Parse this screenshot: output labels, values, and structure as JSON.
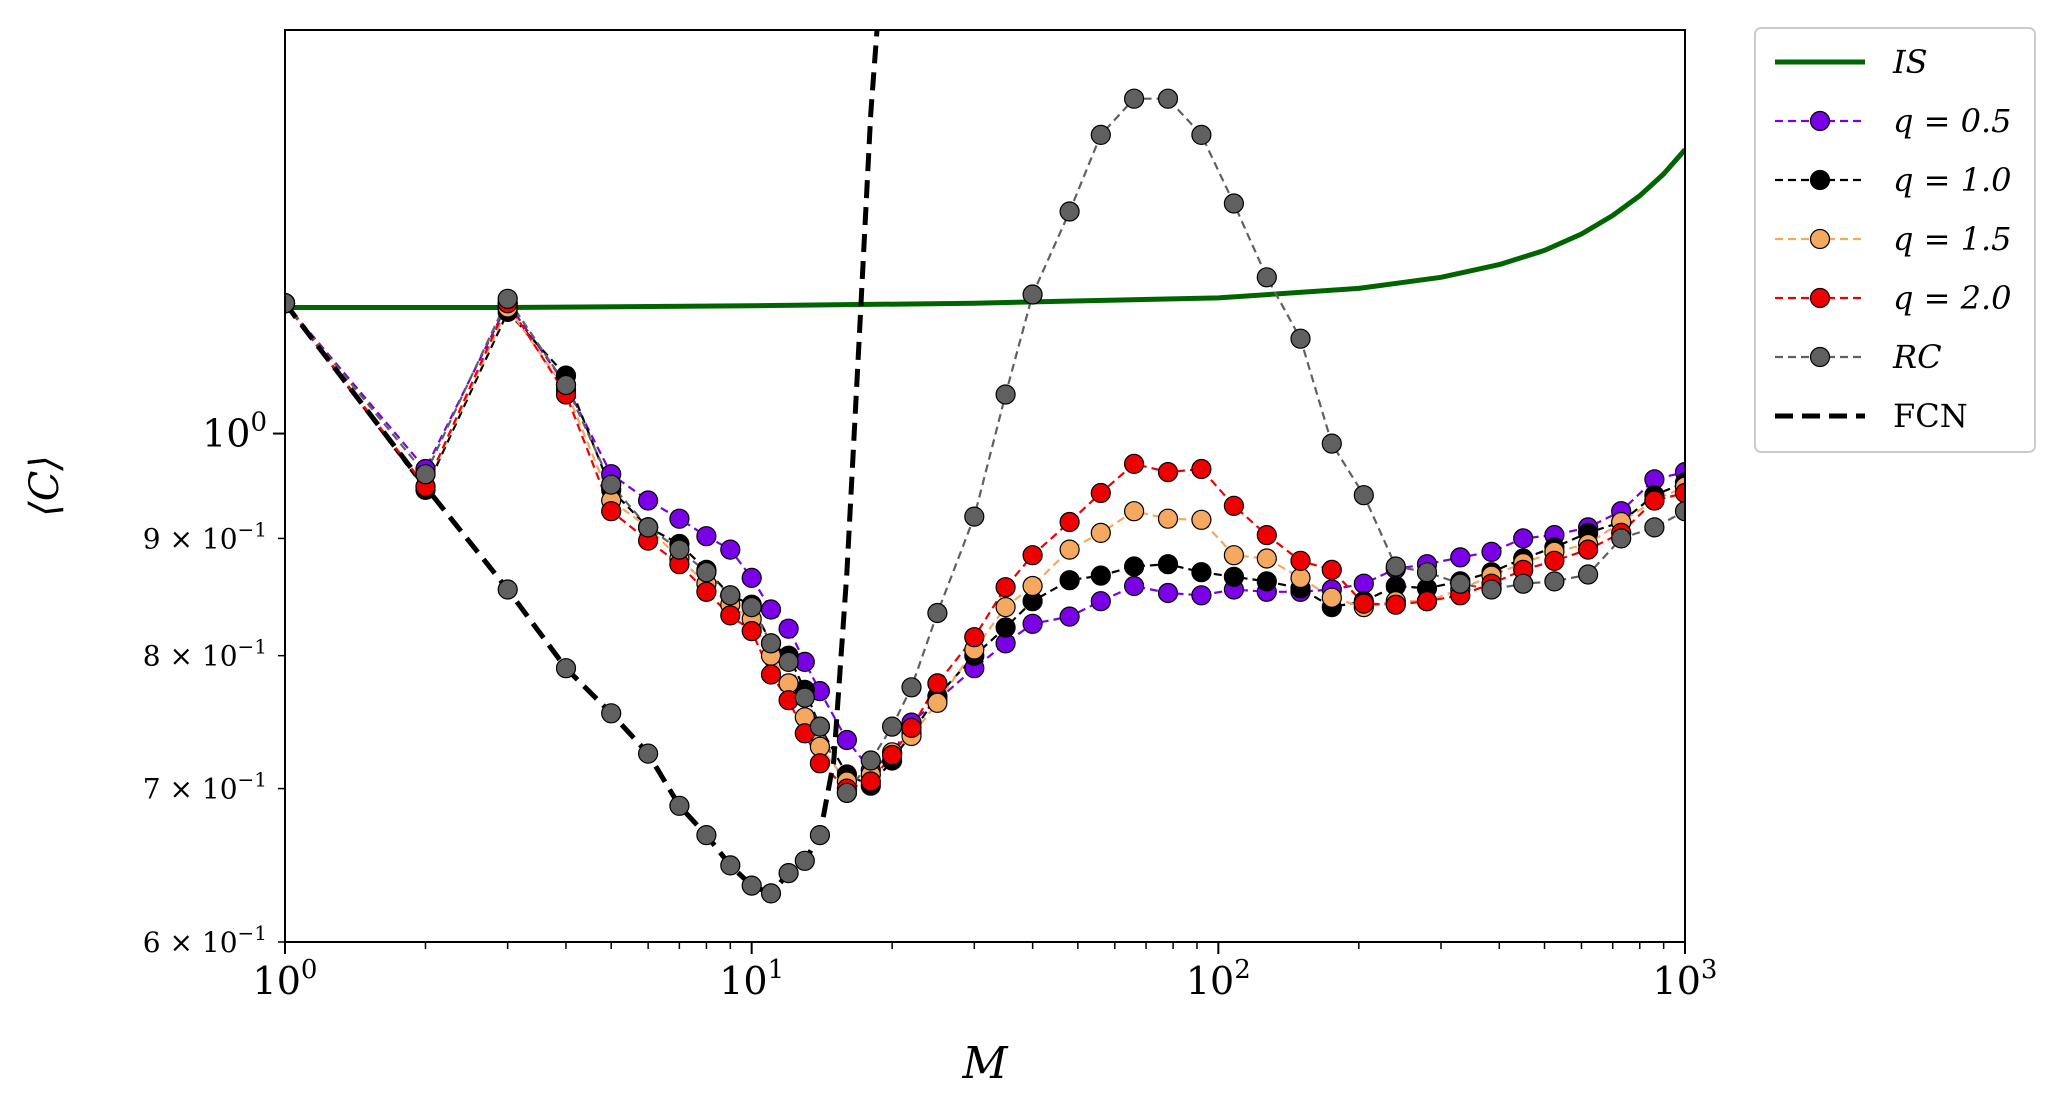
{
  "chart_data": {
    "type": "line",
    "xscale": "log",
    "yscale": "log",
    "xlim": [
      1,
      1000
    ],
    "ylim": [
      0.6,
      1.5
    ],
    "xlabel": "M",
    "ylabel": "⟨C⟩",
    "x_ticks": [
      {
        "value": 1,
        "base": "10",
        "exp": "0"
      },
      {
        "value": 10,
        "base": "10",
        "exp": "1"
      },
      {
        "value": 100,
        "base": "10",
        "exp": "2"
      },
      {
        "value": 1000,
        "base": "10",
        "exp": "3"
      }
    ],
    "y_ticks": [
      {
        "value": 1.0,
        "mant": "",
        "base": "10",
        "exp": "0"
      },
      {
        "value": 0.9,
        "mant": "9 × ",
        "base": "10",
        "exp": "−1"
      },
      {
        "value": 0.8,
        "mant": "8 × ",
        "base": "10",
        "exp": "−1"
      },
      {
        "value": 0.7,
        "mant": "7 × ",
        "base": "10",
        "exp": "−1"
      },
      {
        "value": 0.6,
        "mant": "6 × ",
        "base": "10",
        "exp": "−1"
      }
    ],
    "legend_position": "outside-top-right",
    "series": [
      {
        "name": "IS",
        "legend": "IS",
        "italic": true,
        "color": "#006400",
        "style": "solid-thick",
        "x": [
          1,
          3,
          10,
          30,
          100,
          200,
          300,
          400,
          500,
          600,
          700,
          800,
          900,
          1000
        ],
        "y": [
          1.135,
          1.135,
          1.137,
          1.14,
          1.146,
          1.157,
          1.17,
          1.185,
          1.202,
          1.222,
          1.245,
          1.27,
          1.298,
          1.33
        ]
      },
      {
        "name": "q = 0.5",
        "legend": "q = 0.5",
        "italic": true,
        "color": "#7a00e6",
        "style": "dashed-marker",
        "x": [
          1,
          2,
          3,
          4,
          5,
          6,
          7,
          8,
          9,
          10,
          11,
          12,
          13,
          14,
          16,
          18,
          20,
          22,
          25,
          30,
          35,
          40,
          48,
          56,
          66,
          78,
          92,
          108,
          127,
          150,
          175,
          205,
          240,
          280,
          330,
          385,
          450,
          525,
          620,
          730,
          860,
          1000
        ],
        "y": [
          1.14,
          0.965,
          1.14,
          1.05,
          0.96,
          0.935,
          0.918,
          0.902,
          0.89,
          0.865,
          0.838,
          0.822,
          0.795,
          0.772,
          0.735,
          0.713,
          0.725,
          0.748,
          0.765,
          0.79,
          0.81,
          0.826,
          0.832,
          0.845,
          0.858,
          0.852,
          0.85,
          0.855,
          0.853,
          0.853,
          0.855,
          0.86,
          0.873,
          0.877,
          0.883,
          0.888,
          0.9,
          0.903,
          0.91,
          0.925,
          0.955,
          0.962
        ]
      },
      {
        "name": "q = 1.0",
        "legend": "q = 1.0",
        "italic": true,
        "color": "#000000",
        "style": "dashed-marker",
        "x": [
          1,
          2,
          3,
          4,
          5,
          6,
          7,
          8,
          9,
          10,
          11,
          12,
          13,
          14,
          16,
          18,
          20,
          22,
          25,
          30,
          35,
          40,
          48,
          56,
          66,
          78,
          92,
          108,
          127,
          150,
          175,
          205,
          240,
          280,
          330,
          385,
          450,
          525,
          620,
          730,
          860,
          1000
        ],
        "y": [
          1.14,
          0.945,
          1.13,
          1.06,
          0.945,
          0.91,
          0.895,
          0.872,
          0.85,
          0.842,
          0.81,
          0.8,
          0.773,
          0.745,
          0.71,
          0.702,
          0.72,
          0.74,
          0.768,
          0.8,
          0.823,
          0.845,
          0.863,
          0.867,
          0.875,
          0.877,
          0.87,
          0.866,
          0.862,
          0.856,
          0.84,
          0.845,
          0.858,
          0.856,
          0.862,
          0.87,
          0.882,
          0.892,
          0.905,
          0.915,
          0.94,
          0.952
        ]
      },
      {
        "name": "q = 1.5",
        "legend": "q = 1.5",
        "italic": true,
        "color": "#f5a860",
        "style": "dashed-marker",
        "x": [
          1,
          2,
          3,
          4,
          5,
          6,
          7,
          8,
          9,
          10,
          11,
          12,
          13,
          14,
          16,
          18,
          20,
          22,
          25,
          30,
          35,
          40,
          48,
          56,
          66,
          78,
          92,
          108,
          127,
          150,
          175,
          205,
          240,
          280,
          330,
          385,
          450,
          525,
          620,
          730,
          860,
          1000
        ],
        "y": [
          1.14,
          0.948,
          1.135,
          1.045,
          0.935,
          0.91,
          0.882,
          0.86,
          0.842,
          0.83,
          0.8,
          0.778,
          0.752,
          0.73,
          0.705,
          0.71,
          0.726,
          0.738,
          0.763,
          0.805,
          0.84,
          0.858,
          0.89,
          0.905,
          0.925,
          0.918,
          0.917,
          0.885,
          0.882,
          0.865,
          0.848,
          0.84,
          0.845,
          0.845,
          0.855,
          0.867,
          0.878,
          0.888,
          0.895,
          0.915,
          0.935,
          0.948
        ]
      },
      {
        "name": "q = 2.0",
        "legend": "q = 2.0",
        "italic": true,
        "color": "#ee0000",
        "style": "dashed-marker",
        "x": [
          1,
          2,
          3,
          4,
          5,
          6,
          7,
          8,
          9,
          10,
          11,
          12,
          13,
          14,
          16,
          18,
          20,
          22,
          25,
          30,
          35,
          40,
          48,
          56,
          66,
          78,
          92,
          108,
          127,
          150,
          175,
          205,
          240,
          280,
          330,
          385,
          450,
          525,
          620,
          730,
          860,
          1000
        ],
        "y": [
          1.14,
          0.948,
          1.14,
          1.04,
          0.925,
          0.898,
          0.877,
          0.853,
          0.833,
          0.82,
          0.785,
          0.765,
          0.74,
          0.718,
          0.7,
          0.705,
          0.724,
          0.744,
          0.778,
          0.815,
          0.857,
          0.885,
          0.915,
          0.942,
          0.97,
          0.962,
          0.965,
          0.93,
          0.903,
          0.88,
          0.872,
          0.843,
          0.842,
          0.845,
          0.85,
          0.86,
          0.872,
          0.88,
          0.89,
          0.905,
          0.935,
          0.942
        ]
      },
      {
        "name": "RC",
        "legend": "RC",
        "italic": true,
        "color": "#606060",
        "style": "dashed-marker",
        "x": [
          1,
          2,
          3,
          4,
          5,
          6,
          7,
          8,
          9,
          10,
          11,
          12,
          13,
          14,
          16,
          18,
          20,
          22,
          25,
          30,
          35,
          40,
          48,
          56,
          66,
          78,
          92,
          108,
          127,
          150,
          175,
          205,
          240,
          280,
          330,
          385,
          450,
          525,
          620,
          730,
          860,
          1000
        ],
        "y": [
          1.14,
          0.96,
          1.145,
          1.05,
          0.95,
          0.91,
          0.89,
          0.87,
          0.85,
          0.84,
          0.81,
          0.795,
          0.767,
          0.745,
          0.697,
          0.72,
          0.745,
          0.775,
          0.835,
          0.92,
          1.04,
          1.15,
          1.25,
          1.35,
          1.4,
          1.4,
          1.35,
          1.26,
          1.17,
          1.1,
          0.99,
          0.94,
          0.875,
          0.87,
          0.86,
          0.855,
          0.86,
          0.862,
          0.868,
          0.9,
          0.91,
          0.925
        ]
      },
      {
        "name": "FCN",
        "legend": "FCN",
        "italic": false,
        "color": "#000000",
        "style": "dashed-thick",
        "x": [
          1,
          2,
          3,
          4,
          5,
          6,
          7,
          8,
          9,
          10,
          11,
          12,
          13,
          14,
          15,
          16,
          17,
          18,
          19
        ],
        "y": [
          1.14,
          0.948,
          0.855,
          0.79,
          0.755,
          0.725,
          0.688,
          0.668,
          0.648,
          0.635,
          0.63,
          0.643,
          0.651,
          0.668,
          0.72,
          0.87,
          1.1,
          1.38,
          1.6
        ]
      }
    ],
    "rc_extra": {
      "x": [
        1,
        2,
        3,
        4,
        5,
        6,
        7,
        8,
        9,
        10,
        11,
        12,
        13,
        14,
        16
      ],
      "y": [
        1.14,
        0.96,
        0.855,
        0.79,
        0.755,
        0.725,
        0.688,
        0.668,
        0.648,
        0.635,
        0.63,
        0.643,
        0.651,
        0.668,
        0.697
      ]
    }
  }
}
